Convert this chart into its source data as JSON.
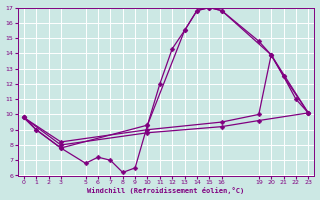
{
  "bg_color": "#cce8e4",
  "line_color": "#800080",
  "grid_color": "#ffffff",
  "xlabel": "Windchill (Refroidissement éolien,°C)",
  "xlim": [
    -0.5,
    23.5
  ],
  "ylim": [
    6,
    17
  ],
  "xticks": [
    0,
    1,
    2,
    3,
    5,
    6,
    7,
    8,
    9,
    10,
    11,
    12,
    13,
    14,
    15,
    16,
    19,
    20,
    21,
    22,
    23
  ],
  "yticks": [
    6,
    7,
    8,
    9,
    10,
    11,
    12,
    13,
    14,
    15,
    16,
    17
  ],
  "line1_x": [
    0,
    1,
    3,
    5,
    6,
    7,
    8,
    9,
    10,
    11,
    12,
    13,
    14,
    15,
    16,
    20,
    21,
    22,
    23
  ],
  "line1_y": [
    9.8,
    9.0,
    7.8,
    6.8,
    7.2,
    7.0,
    6.2,
    6.5,
    9.3,
    12.0,
    14.3,
    15.5,
    16.8,
    17.0,
    16.8,
    13.9,
    12.5,
    11.0,
    10.1
  ],
  "line2_x": [
    0,
    1,
    3,
    10,
    13,
    14,
    15,
    16,
    19,
    20,
    23
  ],
  "line2_y": [
    9.8,
    9.0,
    7.8,
    9.3,
    15.5,
    16.8,
    17.0,
    16.8,
    14.8,
    13.9,
    10.1
  ],
  "line3_x": [
    0,
    3,
    10,
    16,
    19,
    23
  ],
  "line3_y": [
    9.8,
    8.0,
    8.8,
    9.2,
    9.6,
    10.1
  ],
  "line4_x": [
    0,
    3,
    10,
    16,
    19,
    20,
    21,
    23
  ],
  "line4_y": [
    9.8,
    8.2,
    9.0,
    9.5,
    10.0,
    13.9,
    12.5,
    10.1
  ]
}
